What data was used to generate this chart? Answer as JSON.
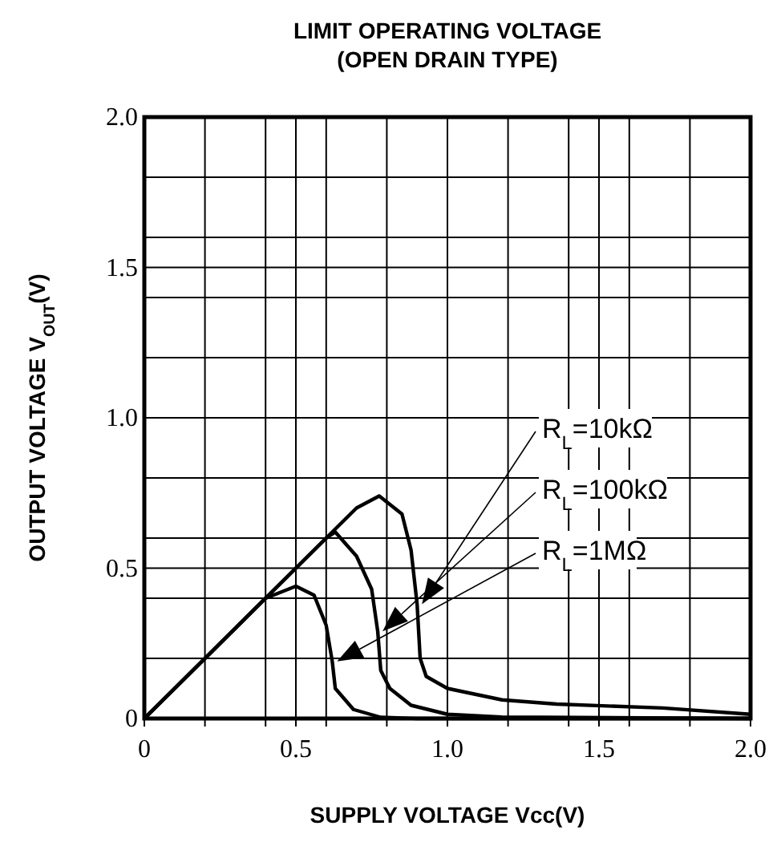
{
  "chart_data": {
    "type": "line",
    "title": "LIMIT OPERATING VOLTAGE\n(OPEN DRAIN TYPE)",
    "xlabel": "SUPPLY VOLTAGE Vcc(V)",
    "ylabel": "OUTPUT VOLTAGE V$_{OUT}$(V)",
    "xlim": [
      0,
      2.0
    ],
    "ylim": [
      0,
      2.0
    ],
    "xticks": [
      0,
      {
        "value": 0.2,
        "label": null
      },
      {
        "value": 0.4,
        "label": null
      },
      {
        "value": 0.5,
        "label": "0.5"
      },
      {
        "value": 0.6,
        "label": null
      },
      {
        "value": 0.8,
        "label": null
      },
      {
        "value": 1.0,
        "label": "1.0"
      },
      {
        "value": 1.2,
        "label": null
      },
      {
        "value": 1.4,
        "label": null
      },
      {
        "value": 1.5,
        "label": "1.5"
      },
      {
        "value": 1.6,
        "label": null
      },
      {
        "value": 1.8,
        "label": null
      },
      {
        "value": 2.0,
        "label": "2.0"
      }
    ],
    "yticks": [
      0,
      {
        "value": 0.2,
        "label": null
      },
      {
        "value": 0.4,
        "label": null
      },
      {
        "value": 0.5,
        "label": "0.5"
      },
      {
        "value": 0.6,
        "label": null
      },
      {
        "value": 0.8,
        "label": null
      },
      {
        "value": 1.0,
        "label": "1.0"
      },
      {
        "value": 1.2,
        "label": null
      },
      {
        "value": 1.4,
        "label": null
      },
      {
        "value": 1.5,
        "label": "1.5"
      },
      {
        "value": 1.6,
        "label": null
      },
      {
        "value": 1.8,
        "label": null
      },
      {
        "value": 2.0,
        "label": "2.0"
      }
    ],
    "grid": true,
    "marker": "none",
    "line_style": "solid",
    "series": [
      {
        "color": "#000000",
        "x": [
          0,
          0.4,
          0.5,
          0.56,
          0.6,
          0.62,
          0.63,
          0.69,
          0.78,
          0.9,
          2.0
        ],
        "values": [
          0,
          0.4,
          0.44,
          0.41,
          0.31,
          0.19,
          0.1,
          0.03,
          0.004,
          0,
          0
        ]
      },
      {
        "color": "#000000",
        "x": [
          0,
          0.6,
          0.63,
          0.7,
          0.75,
          0.77,
          0.78,
          0.81,
          0.88,
          1.0,
          1.18,
          2.0
        ],
        "values": [
          0,
          0.6,
          0.62,
          0.54,
          0.43,
          0.29,
          0.16,
          0.1,
          0.044,
          0.014,
          0.005,
          0
        ]
      },
      {
        "color": "#000000",
        "x": [
          0,
          0.7,
          0.775,
          0.85,
          0.88,
          0.9,
          0.91,
          0.93,
          1.0,
          1.18,
          1.36,
          1.71,
          2.0
        ],
        "values": [
          0,
          0.7,
          0.74,
          0.68,
          0.56,
          0.38,
          0.2,
          0.14,
          0.1,
          0.062,
          0.048,
          0.035,
          0.014
        ]
      }
    ],
    "annotations": [
      "R$_{L}$=10kΩ",
      "R$_{L}$=100kΩ",
      "R$_{L}$=1MΩ"
    ]
  }
}
